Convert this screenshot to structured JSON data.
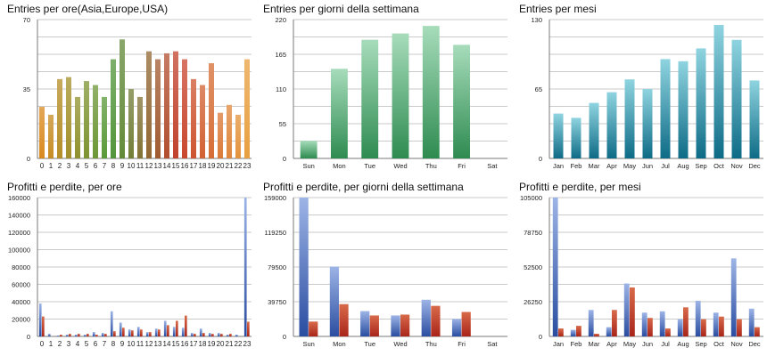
{
  "colors": {
    "grid": "#b9b9b9",
    "axis": "#7a7a7a",
    "blue_light": "#9db4e6",
    "blue_dark": "#2a4da0",
    "red_light": "#d86a4a",
    "red_dark": "#a9251a",
    "green_light": "#a7dcbb",
    "green_dark": "#2e8b50",
    "teal_light": "#8fd4e0",
    "teal_dark": "#0e6b86",
    "gradient_hours": [
      "#d98a1f",
      "#4e9a3c",
      "#c63f2c",
      "#e8a040"
    ]
  },
  "chart_data": [
    {
      "type": "bar",
      "title": "Entries per ore(Asia,Europe,USA)",
      "categories": [
        "0",
        "1",
        "2",
        "3",
        "4",
        "5",
        "6",
        "7",
        "8",
        "9",
        "10",
        "11",
        "12",
        "13",
        "14",
        "15",
        "16",
        "17",
        "18",
        "19",
        "20",
        "21",
        "22",
        "23"
      ],
      "series": [
        {
          "values": [
            26,
            22,
            40,
            41,
            31,
            39,
            37,
            31,
            50,
            60,
            35,
            31,
            54,
            50,
            53,
            54,
            50,
            40,
            37,
            48,
            23,
            27,
            22,
            50
          ]
        }
      ],
      "ylim": [
        0,
        70
      ],
      "yticks": [
        "0",
        "35",
        "70"
      ],
      "grid": true,
      "style": "hours-gradient"
    },
    {
      "type": "bar",
      "title": "Entries per giorni della settimana",
      "categories": [
        "Sun",
        "Mon",
        "Tue",
        "Wed",
        "Thu",
        "Fri",
        "Sat"
      ],
      "series": [
        {
          "values": [
            28,
            142,
            188,
            198,
            210,
            180,
            0
          ]
        }
      ],
      "ylim": [
        0,
        220
      ],
      "yticks": [
        "0",
        "55",
        "110",
        "165",
        "220"
      ],
      "grid": true,
      "style": "green"
    },
    {
      "type": "bar",
      "title": "Entries per mesi",
      "categories": [
        "Jan",
        "Feb",
        "Mar",
        "Apr",
        "May",
        "Jun",
        "Jul",
        "Aug",
        "Sep",
        "Oct",
        "Nov",
        "Dec"
      ],
      "series": [
        {
          "values": [
            42,
            38,
            52,
            62,
            74,
            65,
            93,
            91,
            103,
            125,
            111,
            73
          ]
        }
      ],
      "ylim": [
        0,
        130
      ],
      "yticks": [
        "0",
        "65",
        "130"
      ],
      "grid": true,
      "style": "teal"
    },
    {
      "type": "bar",
      "title": "Profitti e perdite, per ore",
      "categories": [
        "0",
        "1",
        "2",
        "3",
        "4",
        "5",
        "6",
        "7",
        "8",
        "9",
        "10",
        "11",
        "12",
        "13",
        "14",
        "15",
        "16",
        "17",
        "18",
        "19",
        "20",
        "21",
        "22",
        "23"
      ],
      "series": [
        {
          "values": [
            38000,
            3000,
            1000,
            2000,
            2000,
            2000,
            5000,
            4000,
            29000,
            16000,
            8000,
            11000,
            5000,
            9000,
            18000,
            11000,
            10000,
            4000,
            9000,
            4000,
            4000,
            2000,
            2000,
            160000
          ]
        },
        {
          "values": [
            23000,
            0,
            2000,
            3000,
            3000,
            3000,
            2000,
            3000,
            6000,
            10000,
            7000,
            8000,
            5000,
            8000,
            13000,
            18000,
            24000,
            3000,
            4000,
            3000,
            3000,
            3000,
            0,
            17000
          ]
        }
      ],
      "ylim": [
        0,
        160000
      ],
      "yticks": [
        "0",
        "20000",
        "40000",
        "60000",
        "80000",
        "100000",
        "120000",
        "140000",
        "160000"
      ],
      "grid": true,
      "style": "blue-red"
    },
    {
      "type": "bar",
      "title": "Profitti e perdite, per giorni della settimana",
      "categories": [
        "Sun",
        "Mon",
        "Tue",
        "Wed",
        "Thu",
        "Fri",
        "Sat"
      ],
      "series": [
        {
          "values": [
            159000,
            80000,
            29000,
            24000,
            42000,
            20000,
            0
          ]
        },
        {
          "values": [
            17000,
            37000,
            24000,
            25000,
            35000,
            28000,
            0
          ]
        }
      ],
      "ylim": [
        0,
        159000
      ],
      "yticks": [
        "0",
        "39750",
        "79500",
        "119250",
        "159000"
      ],
      "grid": true,
      "style": "blue-red"
    },
    {
      "type": "bar",
      "title": "Profitti e perdite, per mesi",
      "categories": [
        "Jan",
        "Feb",
        "Mar",
        "Apr",
        "May",
        "Jun",
        "Jul",
        "Aug",
        "Sep",
        "Oct",
        "Nov",
        "Dec"
      ],
      "series": [
        {
          "values": [
            105000,
            5000,
            20000,
            7000,
            40000,
            18000,
            19000,
            13000,
            27000,
            18000,
            59000,
            21000
          ]
        },
        {
          "values": [
            6000,
            8000,
            2000,
            20000,
            37000,
            14000,
            6000,
            22000,
            13000,
            15000,
            13000,
            7000
          ]
        }
      ],
      "ylim": [
        0,
        105000
      ],
      "yticks": [
        "0",
        "26250",
        "52500",
        "78750",
        "105000"
      ],
      "grid": true,
      "style": "blue-red"
    }
  ]
}
